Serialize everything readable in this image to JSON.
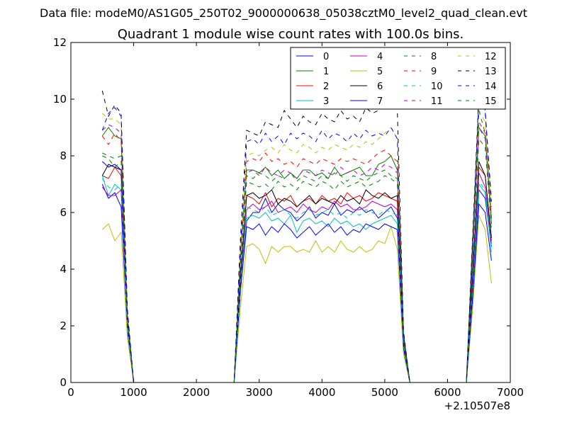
{
  "chart_data": {
    "type": "line",
    "suptitle": "Data file: modeM0/AS1G05_250T02_9000000638_05038cztM0_level2_quad_clean.evt",
    "title": "Quadrant 1 module wise count rates with 100.0s bins.",
    "xlabel": "",
    "ylabel": "",
    "x_offset_label": "+2.10507e8",
    "xlim": [
      0,
      7000
    ],
    "ylim": [
      0,
      12
    ],
    "x_ticks": [
      0,
      1000,
      2000,
      3000,
      4000,
      5000,
      6000,
      7000
    ],
    "y_ticks": [
      0,
      2,
      4,
      6,
      8,
      10,
      12
    ],
    "grid": false,
    "legend_position": "top-right",
    "legend_columns": 4,
    "x": [
      500,
      600,
      700,
      800,
      900,
      1000,
      1100,
      1200,
      1300,
      1400,
      1500,
      1600,
      1700,
      1800,
      1900,
      2000,
      2100,
      2200,
      2300,
      2400,
      2500,
      2600,
      2700,
      2800,
      2900,
      3000,
      3100,
      3200,
      3300,
      3400,
      3500,
      3600,
      3700,
      3800,
      3900,
      4000,
      4100,
      4200,
      4300,
      4400,
      4500,
      4600,
      4700,
      4800,
      4900,
      5000,
      5100,
      5200,
      5300,
      5400,
      5500,
      5600,
      5700,
      5800,
      5900,
      6000,
      6100,
      6200,
      6300,
      6400,
      6500,
      6600,
      6700
    ],
    "series": [
      {
        "name": "0",
        "color": "#0000ff",
        "dash": "solid",
        "values": [
          7.0,
          6.5,
          6.7,
          6.2,
          1.9,
          0,
          0,
          0,
          0,
          0,
          0,
          0,
          0,
          0,
          0,
          0,
          0,
          0,
          0,
          0,
          0,
          0,
          3.2,
          5.7,
          6.0,
          6.0,
          6.5,
          6.0,
          6.3,
          6.1,
          6.0,
          5.7,
          5.9,
          6.2,
          5.8,
          6.0,
          5.9,
          6.3,
          5.9,
          6.1,
          6.0,
          6.2,
          6.0,
          6.1,
          5.8,
          6.0,
          6.2,
          5.8,
          1.3,
          0,
          0,
          0,
          0,
          0,
          0,
          0,
          0,
          0,
          0,
          3.0,
          6.8,
          6.5,
          4.8
        ]
      },
      {
        "name": "1",
        "color": "#008000",
        "dash": "solid",
        "values": [
          8.7,
          9.0,
          8.7,
          8.6,
          2.2,
          0,
          0,
          0,
          0,
          0,
          0,
          0,
          0,
          0,
          0,
          0,
          0,
          0,
          0,
          0,
          0,
          0,
          4.4,
          7.5,
          7.5,
          7.4,
          7.6,
          7.3,
          7.5,
          7.2,
          7.4,
          7.2,
          7.5,
          7.5,
          7.3,
          7.4,
          7.2,
          7.6,
          7.3,
          7.4,
          7.5,
          7.6,
          7.3,
          7.3,
          7.7,
          7.8,
          8.0,
          7.5,
          1.6,
          0,
          0,
          0,
          0,
          0,
          0,
          0,
          0,
          0,
          0,
          4.5,
          9.0,
          8.7,
          5.6
        ]
      },
      {
        "name": "2",
        "color": "#ff0000",
        "dash": "solid",
        "values": [
          7.3,
          7.2,
          7.6,
          7.3,
          2.1,
          0,
          0,
          0,
          0,
          0,
          0,
          0,
          0,
          0,
          0,
          0,
          0,
          0,
          0,
          0,
          0,
          0,
          3.7,
          6.6,
          6.5,
          6.3,
          6.7,
          6.2,
          6.5,
          6.4,
          6.6,
          6.2,
          6.4,
          6.5,
          6.3,
          6.6,
          6.4,
          6.5,
          6.3,
          6.7,
          6.5,
          6.6,
          6.4,
          6.5,
          6.7,
          6.6,
          6.5,
          6.4,
          1.4,
          0,
          0,
          0,
          0,
          0,
          0,
          0,
          0,
          0,
          0,
          3.6,
          7.6,
          7.3,
          5.0
        ]
      },
      {
        "name": "3",
        "color": "#00bfbf",
        "dash": "solid",
        "values": [
          7.3,
          6.6,
          7.0,
          6.8,
          1.8,
          0,
          0,
          0,
          0,
          0,
          0,
          0,
          0,
          0,
          0,
          0,
          0,
          0,
          0,
          0,
          0,
          0,
          3.3,
          5.8,
          5.9,
          5.8,
          6.0,
          5.7,
          5.8,
          5.6,
          5.9,
          5.3,
          5.7,
          5.8,
          5.6,
          5.7,
          5.5,
          5.8,
          5.6,
          5.7,
          5.5,
          5.6,
          5.4,
          5.6,
          5.7,
          5.8,
          5.9,
          5.6,
          1.2,
          0,
          0,
          0,
          0,
          0,
          0,
          0,
          0,
          0,
          0,
          3.3,
          7.0,
          6.7,
          4.6
        ]
      },
      {
        "name": "4",
        "color": "#bf00bf",
        "dash": "solid",
        "values": [
          6.9,
          6.6,
          6.6,
          6.8,
          1.9,
          0,
          0,
          0,
          0,
          0,
          0,
          0,
          0,
          0,
          0,
          0,
          0,
          0,
          0,
          0,
          0,
          0,
          3.5,
          6.1,
          6.3,
          6.1,
          6.2,
          6.4,
          6.0,
          6.1,
          6.2,
          6.0,
          6.3,
          6.1,
          6.0,
          6.2,
          6.1,
          6.4,
          6.2,
          6.3,
          6.1,
          6.1,
          6.2,
          6.4,
          6.3,
          6.2,
          6.3,
          6.1,
          1.3,
          0,
          0,
          0,
          0,
          0,
          0,
          0,
          0,
          0,
          0,
          3.5,
          7.4,
          6.9,
          4.9
        ]
      },
      {
        "name": "5",
        "color": "#bfbf00",
        "dash": "solid",
        "values": [
          5.4,
          5.6,
          5.0,
          5.3,
          1.6,
          0,
          0,
          0,
          0,
          0,
          0,
          0,
          0,
          0,
          0,
          0,
          0,
          0,
          0,
          0,
          0,
          0,
          2.6,
          4.8,
          4.9,
          4.7,
          4.2,
          4.8,
          4.6,
          4.8,
          4.8,
          4.6,
          4.7,
          4.6,
          5.0,
          4.6,
          4.8,
          4.6,
          5.0,
          4.7,
          4.6,
          4.8,
          4.6,
          4.7,
          5.0,
          4.9,
          5.5,
          4.7,
          1.0,
          0,
          0,
          0,
          0,
          0,
          0,
          0,
          0,
          0,
          0,
          2.6,
          5.9,
          5.4,
          3.5
        ]
      },
      {
        "name": "6",
        "color": "#000000",
        "dash": "solid",
        "values": [
          7.3,
          7.7,
          7.6,
          7.5,
          2.2,
          0,
          0,
          0,
          0,
          0,
          0,
          0,
          0,
          0,
          0,
          0,
          0,
          0,
          0,
          0,
          0,
          0,
          3.7,
          6.6,
          6.7,
          6.5,
          6.6,
          6.8,
          6.3,
          6.5,
          6.4,
          6.2,
          6.4,
          6.6,
          6.3,
          6.5,
          6.4,
          6.3,
          6.6,
          6.4,
          6.5,
          6.3,
          6.8,
          6.6,
          6.5,
          6.7,
          6.5,
          6.6,
          1.4,
          0,
          0,
          0,
          0,
          0,
          0,
          0,
          0,
          0,
          0,
          3.8,
          7.8,
          7.3,
          5.1
        ]
      },
      {
        "name": "7",
        "color": "#0000ff",
        "dash": "solid",
        "values": [
          7.8,
          7.6,
          7.7,
          7.5,
          2.0,
          0,
          0,
          0,
          0,
          0,
          0,
          0,
          0,
          0,
          0,
          0,
          0,
          0,
          0,
          0,
          0,
          0,
          3.2,
          5.5,
          5.4,
          5.6,
          5.2,
          5.5,
          5.3,
          5.6,
          5.4,
          5.1,
          5.3,
          5.5,
          5.2,
          5.4,
          5.6,
          5.3,
          5.5,
          5.2,
          5.4,
          5.3,
          5.6,
          5.5,
          5.4,
          5.6,
          5.5,
          5.4,
          1.2,
          0,
          0,
          0,
          0,
          0,
          0,
          0,
          0,
          0,
          0,
          3.0,
          6.3,
          6.0,
          4.3
        ]
      },
      {
        "name": "8",
        "color": "#008000",
        "dash": "dashed",
        "values": [
          8.0,
          7.9,
          7.6,
          7.8,
          2.3,
          0,
          0,
          0,
          0,
          0,
          0,
          0,
          0,
          0,
          0,
          0,
          0,
          0,
          0,
          0,
          0,
          0,
          4.1,
          7.1,
          7.0,
          6.9,
          7.0,
          6.8,
          7.1,
          6.9,
          7.0,
          6.8,
          7.1,
          7.0,
          6.9,
          7.1,
          7.0,
          6.8,
          7.1,
          6.9,
          7.0,
          7.1,
          6.9,
          7.0,
          7.1,
          7.3,
          7.2,
          7.0,
          1.5,
          0,
          0,
          0,
          0,
          0,
          0,
          0,
          0,
          0,
          0,
          4.3,
          8.6,
          8.3,
          5.4
        ]
      },
      {
        "name": "9",
        "color": "#ff0000",
        "dash": "dashed",
        "values": [
          8.7,
          8.4,
          8.8,
          8.5,
          2.4,
          0,
          0,
          0,
          0,
          0,
          0,
          0,
          0,
          0,
          0,
          0,
          0,
          0,
          0,
          0,
          0,
          0,
          4.3,
          7.8,
          7.9,
          7.8,
          8.1,
          7.8,
          7.9,
          7.7,
          7.8,
          7.6,
          7.9,
          7.8,
          7.7,
          7.9,
          7.8,
          7.7,
          7.9,
          7.8,
          7.9,
          7.8,
          7.7,
          7.9,
          8.1,
          8.2,
          8.0,
          7.8,
          1.6,
          0,
          0,
          0,
          0,
          0,
          0,
          0,
          0,
          0,
          0,
          4.6,
          9.2,
          8.8,
          5.8
        ]
      },
      {
        "name": "10",
        "color": "#00bfbf",
        "dash": "dashed",
        "values": [
          7.2,
          6.9,
          6.8,
          7.0,
          2.0,
          0,
          0,
          0,
          0,
          0,
          0,
          0,
          0,
          0,
          0,
          0,
          0,
          0,
          0,
          0,
          0,
          0,
          3.5,
          6.2,
          6.1,
          6.0,
          6.2,
          5.9,
          6.0,
          6.1,
          5.9,
          5.8,
          6.0,
          6.1,
          5.9,
          6.0,
          6.1,
          5.9,
          6.0,
          5.8,
          6.0,
          5.9,
          6.1,
          6.0,
          5.9,
          6.1,
          6.0,
          5.9,
          1.3,
          0,
          0,
          0,
          0,
          0,
          0,
          0,
          0,
          0,
          0,
          3.4,
          7.1,
          6.8,
          4.8
        ]
      },
      {
        "name": "11",
        "color": "#bf00bf",
        "dash": "dashed",
        "values": [
          8.9,
          9.1,
          9.0,
          8.8,
          2.4,
          0,
          0,
          0,
          0,
          0,
          0,
          0,
          0,
          0,
          0,
          0,
          0,
          0,
          0,
          0,
          0,
          0,
          4.2,
          7.4,
          7.5,
          7.3,
          7.6,
          7.4,
          7.3,
          7.5,
          7.4,
          7.2,
          7.5,
          7.4,
          7.3,
          7.5,
          7.4,
          7.3,
          7.6,
          7.4,
          7.5,
          7.3,
          7.4,
          7.6,
          7.5,
          7.7,
          7.6,
          7.4,
          1.5,
          0,
          0,
          0,
          0,
          0,
          0,
          0,
          0,
          0,
          0,
          4.5,
          9.0,
          8.6,
          5.7
        ]
      },
      {
        "name": "12",
        "color": "#bfbf00",
        "dash": "dashed",
        "values": [
          9.5,
          9.3,
          9.3,
          9.1,
          2.5,
          0,
          0,
          0,
          0,
          0,
          0,
          0,
          0,
          0,
          0,
          0,
          0,
          0,
          0,
          0,
          0,
          0,
          4.5,
          8.0,
          8.1,
          8.0,
          8.2,
          8.3,
          8.1,
          8.4,
          8.2,
          8.1,
          8.4,
          8.3,
          8.1,
          8.3,
          8.2,
          8.4,
          8.3,
          8.2,
          8.4,
          8.3,
          8.5,
          8.4,
          8.6,
          8.8,
          9.0,
          8.6,
          1.7,
          0,
          0,
          0,
          0,
          0,
          0,
          0,
          0,
          0,
          0,
          4.8,
          9.6,
          9.2,
          6.0
        ]
      },
      {
        "name": "13",
        "color": "#000000",
        "dash": "dashed",
        "values": [
          10.3,
          9.4,
          9.8,
          9.5,
          2.6,
          0,
          0,
          0,
          0,
          0,
          0,
          0,
          0,
          0,
          0,
          0,
          0,
          0,
          0,
          0,
          0,
          0,
          5.0,
          8.9,
          8.8,
          8.7,
          9.2,
          9.1,
          9.0,
          9.6,
          9.3,
          9.0,
          9.4,
          9.2,
          9.1,
          9.5,
          9.3,
          9.2,
          9.6,
          9.3,
          9.4,
          9.2,
          9.7,
          9.5,
          9.6,
          9.8,
          9.9,
          9.6,
          1.8,
          0,
          0,
          0,
          0,
          0,
          0,
          0,
          0,
          0,
          0,
          5.2,
          10.2,
          9.6,
          6.4
        ]
      },
      {
        "name": "14",
        "color": "#0000ff",
        "dash": "dashed",
        "values": [
          8.9,
          9.5,
          9.7,
          9.4,
          2.5,
          0,
          0,
          0,
          0,
          0,
          0,
          0,
          0,
          0,
          0,
          0,
          0,
          0,
          0,
          0,
          0,
          0,
          4.7,
          8.5,
          8.6,
          8.4,
          8.8,
          8.5,
          8.7,
          8.4,
          8.8,
          8.6,
          8.8,
          8.7,
          8.5,
          8.9,
          8.6,
          8.8,
          8.7,
          8.5,
          8.8,
          8.6,
          8.9,
          8.7,
          8.8,
          8.7,
          9.0,
          8.6,
          1.7,
          0,
          0,
          0,
          0,
          0,
          0,
          0,
          0,
          0,
          0,
          5.0,
          10.0,
          9.5,
          6.2
        ]
      },
      {
        "name": "15",
        "color": "#008000",
        "dash": "dashed",
        "values": [
          8.1,
          8.0,
          7.9,
          8.0,
          2.3,
          0,
          0,
          0,
          0,
          0,
          0,
          0,
          0,
          0,
          0,
          0,
          0,
          0,
          0,
          0,
          0,
          0,
          4.2,
          7.3,
          7.2,
          7.4,
          7.3,
          7.1,
          7.3,
          7.2,
          7.4,
          7.1,
          7.3,
          7.2,
          7.1,
          7.3,
          7.2,
          7.4,
          7.3,
          7.1,
          7.3,
          7.2,
          7.1,
          7.3,
          7.4,
          7.5,
          7.3,
          7.2,
          1.5,
          0,
          0,
          0,
          0,
          0,
          0,
          0,
          0,
          0,
          0,
          4.4,
          9.6,
          8.8,
          5.6
        ]
      }
    ]
  }
}
